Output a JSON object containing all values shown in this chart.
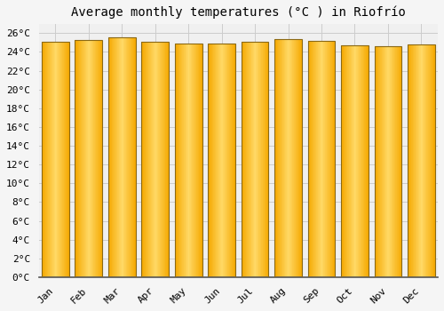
{
  "title": "Average monthly temperatures (°C ) in Riofrío",
  "months": [
    "Jan",
    "Feb",
    "Mar",
    "Apr",
    "May",
    "Jun",
    "Jul",
    "Aug",
    "Sep",
    "Oct",
    "Nov",
    "Dec"
  ],
  "temperatures": [
    25.1,
    25.3,
    25.6,
    25.1,
    24.9,
    24.9,
    25.1,
    25.4,
    25.2,
    24.7,
    24.6,
    24.8
  ],
  "bar_color_center": "#FFD966",
  "bar_color_edge": "#F5A800",
  "bar_border_color": "#8B6914",
  "background_color": "#F5F5F5",
  "plot_bg_color": "#F0F0F0",
  "grid_color": "#CCCCCC",
  "ylim": [
    0,
    27
  ],
  "ytick_step": 2,
  "title_fontsize": 10,
  "tick_fontsize": 8,
  "font_family": "monospace",
  "bar_width": 0.82,
  "figsize": [
    5.0,
    3.5
  ],
  "dpi": 100
}
